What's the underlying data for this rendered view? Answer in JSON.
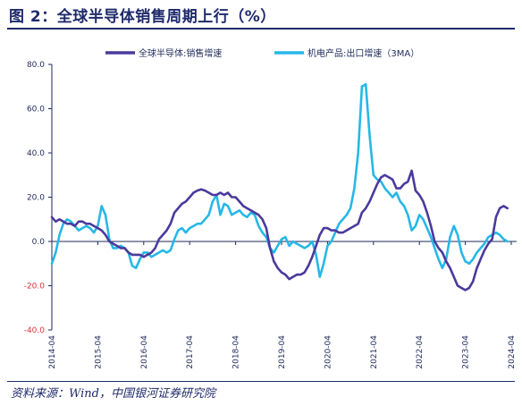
{
  "title": "图 2：全球半导体销售周期上行（%）",
  "source": "资料来源：Wind，中国银河证券研究院",
  "chart_data": {
    "type": "line",
    "ylim": [
      -40,
      80
    ],
    "yticks": [
      "80.0",
      "60.0",
      "40.0",
      "20.0",
      "0.0",
      "-20.0",
      "-40.0"
    ],
    "ytick_values": [
      80,
      60,
      40,
      20,
      0,
      -20,
      -40
    ],
    "xticks": [
      "2014-04",
      "2015-04",
      "2016-04",
      "2017-04",
      "2018-04",
      "2019-04",
      "2020-04",
      "2021-04",
      "2022-04",
      "2023-04",
      "2024-04"
    ],
    "legend_position": "top",
    "series": [
      {
        "name": "全球半导体:销售增速",
        "color": "#4b3a9c",
        "points": [
          [
            "2014-04",
            11
          ],
          [
            "2014-05",
            9
          ],
          [
            "2014-06",
            10
          ],
          [
            "2014-07",
            9
          ],
          [
            "2014-08",
            8
          ],
          [
            "2014-09",
            8
          ],
          [
            "2014-10",
            7
          ],
          [
            "2014-11",
            9
          ],
          [
            "2014-12",
            9
          ],
          [
            "2015-01",
            8
          ],
          [
            "2015-02",
            8
          ],
          [
            "2015-03",
            7
          ],
          [
            "2015-04",
            6
          ],
          [
            "2015-05",
            5
          ],
          [
            "2015-06",
            3
          ],
          [
            "2015-07",
            0
          ],
          [
            "2015-08",
            -1
          ],
          [
            "2015-09",
            -2
          ],
          [
            "2015-10",
            -3
          ],
          [
            "2015-11",
            -3
          ],
          [
            "2015-12",
            -5
          ],
          [
            "2016-01",
            -6
          ],
          [
            "2016-02",
            -6
          ],
          [
            "2016-03",
            -6
          ],
          [
            "2016-04",
            -7
          ],
          [
            "2016-05",
            -6
          ],
          [
            "2016-06",
            -5
          ],
          [
            "2016-07",
            -3
          ],
          [
            "2016-08",
            1
          ],
          [
            "2016-09",
            3
          ],
          [
            "2016-10",
            5
          ],
          [
            "2016-11",
            8
          ],
          [
            "2016-12",
            13
          ],
          [
            "2017-01",
            15
          ],
          [
            "2017-02",
            17
          ],
          [
            "2017-03",
            18
          ],
          [
            "2017-04",
            20
          ],
          [
            "2017-05",
            22
          ],
          [
            "2017-06",
            23
          ],
          [
            "2017-07",
            23.5
          ],
          [
            "2017-08",
            23
          ],
          [
            "2017-09",
            22
          ],
          [
            "2017-10",
            21
          ],
          [
            "2017-11",
            21
          ],
          [
            "2017-12",
            22
          ],
          [
            "2018-01",
            21
          ],
          [
            "2018-02",
            22
          ],
          [
            "2018-03",
            20
          ],
          [
            "2018-04",
            20
          ],
          [
            "2018-05",
            18
          ],
          [
            "2018-06",
            16
          ],
          [
            "2018-07",
            15
          ],
          [
            "2018-08",
            14
          ],
          [
            "2018-09",
            13
          ],
          [
            "2018-10",
            12
          ],
          [
            "2018-11",
            10
          ],
          [
            "2018-12",
            6
          ],
          [
            "2019-01",
            -3
          ],
          [
            "2019-02",
            -9
          ],
          [
            "2019-03",
            -12
          ],
          [
            "2019-04",
            -14
          ],
          [
            "2019-05",
            -15
          ],
          [
            "2019-06",
            -17
          ],
          [
            "2019-07",
            -16
          ],
          [
            "2019-08",
            -15
          ],
          [
            "2019-09",
            -15
          ],
          [
            "2019-10",
            -14
          ],
          [
            "2019-11",
            -11
          ],
          [
            "2019-12",
            -7
          ],
          [
            "2020-01",
            -2
          ],
          [
            "2020-02",
            3
          ],
          [
            "2020-03",
            6
          ],
          [
            "2020-04",
            6
          ],
          [
            "2020-05",
            5
          ],
          [
            "2020-06",
            5
          ],
          [
            "2020-07",
            4
          ],
          [
            "2020-08",
            4
          ],
          [
            "2020-09",
            5
          ],
          [
            "2020-10",
            6
          ],
          [
            "2020-11",
            7
          ],
          [
            "2020-12",
            8
          ],
          [
            "2021-01",
            13
          ],
          [
            "2021-02",
            15
          ],
          [
            "2021-03",
            18
          ],
          [
            "2021-04",
            22
          ],
          [
            "2021-05",
            26
          ],
          [
            "2021-06",
            29
          ],
          [
            "2021-07",
            30
          ],
          [
            "2021-08",
            29
          ],
          [
            "2021-09",
            28
          ],
          [
            "2021-10",
            24
          ],
          [
            "2021-11",
            24
          ],
          [
            "2021-12",
            26
          ],
          [
            "2022-01",
            27
          ],
          [
            "2022-02",
            32
          ],
          [
            "2022-03",
            23
          ],
          [
            "2022-04",
            21
          ],
          [
            "2022-05",
            18
          ],
          [
            "2022-06",
            13
          ],
          [
            "2022-07",
            7
          ],
          [
            "2022-08",
            0
          ],
          [
            "2022-09",
            -3
          ],
          [
            "2022-10",
            -5
          ],
          [
            "2022-11",
            -9
          ],
          [
            "2022-12",
            -12
          ],
          [
            "2023-01",
            -16
          ],
          [
            "2023-02",
            -20
          ],
          [
            "2023-03",
            -21
          ],
          [
            "2023-04",
            -22
          ],
          [
            "2023-05",
            -21
          ],
          [
            "2023-06",
            -18
          ],
          [
            "2023-07",
            -12
          ],
          [
            "2023-08",
            -8
          ],
          [
            "2023-09",
            -4
          ],
          [
            "2023-10",
            -1
          ],
          [
            "2023-11",
            1
          ],
          [
            "2023-12",
            11
          ],
          [
            "2024-01",
            15
          ],
          [
            "2024-02",
            16
          ],
          [
            "2024-03",
            15
          ]
        ]
      },
      {
        "name": "机电产品:出口增速（3MA）",
        "color": "#26b8e6",
        "points": [
          [
            "2014-04",
            -10
          ],
          [
            "2014-05",
            -5
          ],
          [
            "2014-06",
            3
          ],
          [
            "2014-07",
            8
          ],
          [
            "2014-08",
            10
          ],
          [
            "2014-09",
            9
          ],
          [
            "2014-10",
            7
          ],
          [
            "2014-11",
            5
          ],
          [
            "2014-12",
            6
          ],
          [
            "2015-01",
            7
          ],
          [
            "2015-02",
            6
          ],
          [
            "2015-03",
            4
          ],
          [
            "2015-04",
            7
          ],
          [
            "2015-05",
            16
          ],
          [
            "2015-06",
            12
          ],
          [
            "2015-07",
            1
          ],
          [
            "2015-08",
            -3
          ],
          [
            "2015-09",
            -3
          ],
          [
            "2015-10",
            -2
          ],
          [
            "2015-11",
            -3
          ],
          [
            "2015-12",
            -5
          ],
          [
            "2016-01",
            -11
          ],
          [
            "2016-02",
            -12
          ],
          [
            "2016-03",
            -8
          ],
          [
            "2016-04",
            -5
          ],
          [
            "2016-05",
            -5
          ],
          [
            "2016-06",
            -7
          ],
          [
            "2016-07",
            -6
          ],
          [
            "2016-08",
            -5
          ],
          [
            "2016-09",
            -4
          ],
          [
            "2016-10",
            -5
          ],
          [
            "2016-11",
            -4
          ],
          [
            "2016-12",
            1
          ],
          [
            "2017-01",
            5
          ],
          [
            "2017-02",
            6
          ],
          [
            "2017-03",
            4
          ],
          [
            "2017-04",
            6
          ],
          [
            "2017-05",
            7
          ],
          [
            "2017-06",
            8
          ],
          [
            "2017-07",
            8
          ],
          [
            "2017-08",
            10
          ],
          [
            "2017-09",
            12
          ],
          [
            "2017-10",
            18
          ],
          [
            "2017-11",
            21
          ],
          [
            "2017-12",
            12
          ],
          [
            "2018-01",
            17
          ],
          [
            "2018-02",
            16
          ],
          [
            "2018-03",
            12
          ],
          [
            "2018-04",
            13
          ],
          [
            "2018-05",
            14
          ],
          [
            "2018-06",
            12
          ],
          [
            "2018-07",
            11
          ],
          [
            "2018-08",
            13
          ],
          [
            "2018-09",
            12
          ],
          [
            "2018-10",
            7
          ],
          [
            "2018-11",
            4
          ],
          [
            "2018-12",
            2
          ],
          [
            "2019-01",
            -3
          ],
          [
            "2019-02",
            -5
          ],
          [
            "2019-03",
            -2
          ],
          [
            "2019-04",
            1
          ],
          [
            "2019-05",
            2
          ],
          [
            "2019-06",
            -2
          ],
          [
            "2019-07",
            0
          ],
          [
            "2019-08",
            -1
          ],
          [
            "2019-09",
            -2
          ],
          [
            "2019-10",
            -3
          ],
          [
            "2019-11",
            -2
          ],
          [
            "2019-12",
            0
          ],
          [
            "2020-01",
            -6
          ],
          [
            "2020-02",
            -16
          ],
          [
            "2020-03",
            -10
          ],
          [
            "2020-04",
            -2
          ],
          [
            "2020-05",
            0
          ],
          [
            "2020-06",
            4
          ],
          [
            "2020-07",
            8
          ],
          [
            "2020-08",
            10
          ],
          [
            "2020-09",
            12
          ],
          [
            "2020-10",
            15
          ],
          [
            "2020-11",
            24
          ],
          [
            "2020-12",
            40
          ],
          [
            "2021-01",
            70
          ],
          [
            "2021-02",
            71
          ],
          [
            "2021-03",
            48
          ],
          [
            "2021-04",
            30
          ],
          [
            "2021-05",
            28
          ],
          [
            "2021-06",
            27
          ],
          [
            "2021-07",
            24
          ],
          [
            "2021-08",
            22
          ],
          [
            "2021-09",
            20
          ],
          [
            "2021-10",
            22
          ],
          [
            "2021-11",
            18
          ],
          [
            "2021-12",
            16
          ],
          [
            "2022-01",
            12
          ],
          [
            "2022-02",
            5
          ],
          [
            "2022-03",
            7
          ],
          [
            "2022-04",
            12
          ],
          [
            "2022-05",
            10
          ],
          [
            "2022-06",
            6
          ],
          [
            "2022-07",
            2
          ],
          [
            "2022-08",
            -3
          ],
          [
            "2022-09",
            -8
          ],
          [
            "2022-10",
            -12
          ],
          [
            "2022-11",
            -8
          ],
          [
            "2022-12",
            2
          ],
          [
            "2023-01",
            7
          ],
          [
            "2023-02",
            3
          ],
          [
            "2023-03",
            -5
          ],
          [
            "2023-04",
            -9
          ],
          [
            "2023-05",
            -10
          ],
          [
            "2023-06",
            -8
          ],
          [
            "2023-07",
            -5
          ],
          [
            "2023-08",
            -3
          ],
          [
            "2023-09",
            -1
          ],
          [
            "2023-10",
            2
          ],
          [
            "2023-11",
            3
          ],
          [
            "2023-12",
            4
          ],
          [
            "2024-01",
            3
          ],
          [
            "2024-02",
            1
          ],
          [
            "2024-03",
            0
          ]
        ]
      }
    ]
  }
}
